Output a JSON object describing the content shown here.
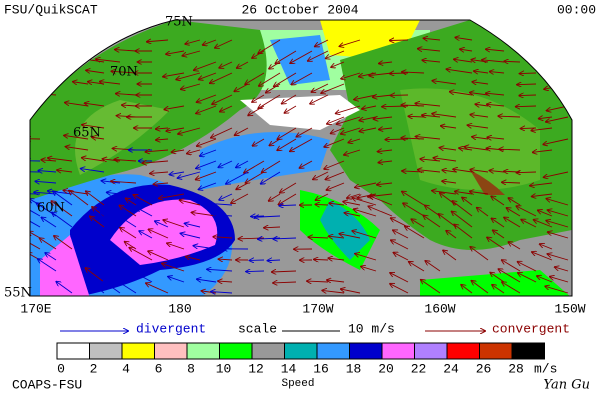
{
  "header": {
    "left": "FSU/QuikSCAT",
    "center": "26 October 2004",
    "right": "00:00"
  },
  "map": {
    "lat_labels": [
      "75N",
      "70N",
      "65N",
      "60N",
      "55N"
    ],
    "lon_labels": [
      "170E",
      "180",
      "170W",
      "160W",
      "150W"
    ]
  },
  "legend": {
    "divergent": "divergent",
    "scale": "scale",
    "scale_value": "10 m/s",
    "convergent": "convergent"
  },
  "colorbar": {
    "colors": [
      "#ffffff",
      "#c0c0c0",
      "#ffff00",
      "#ffc0c0",
      "#a0ffa0",
      "#00ff00",
      "#999999",
      "#00b0b0",
      "#3399ff",
      "#0000cc",
      "#ff66ff",
      "#b080ff",
      "#ff0000",
      "#cc3300",
      "#000000"
    ],
    "ticks": [
      0,
      2,
      4,
      6,
      8,
      10,
      12,
      14,
      16,
      18,
      20,
      22,
      24,
      26,
      28
    ],
    "unit": "m/s",
    "label": "Speed"
  },
  "footer": {
    "left": "COAPS-FSU",
    "right": "Yan Gu"
  }
}
